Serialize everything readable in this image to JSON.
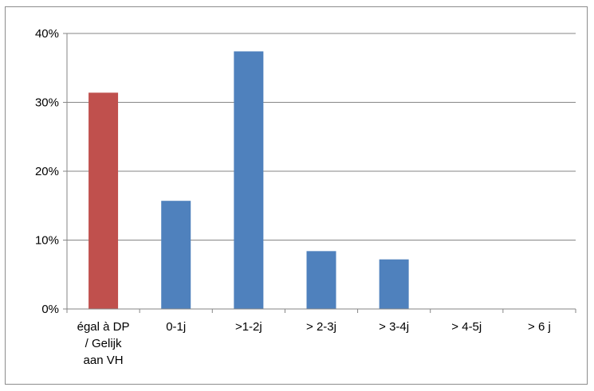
{
  "chart_data": {
    "type": "bar",
    "title": "",
    "xlabel": "",
    "ylabel": "",
    "categories": [
      [
        "égal à DP",
        "/ Gelijk",
        "aan VH"
      ],
      [
        "0-1j"
      ],
      [
        ">1-2j"
      ],
      [
        "> 2-3j"
      ],
      [
        "> 3-4j"
      ],
      [
        "> 4-5j"
      ],
      [
        "> 6 j"
      ]
    ],
    "values": [
      31.4,
      15.7,
      37.4,
      8.4,
      7.2,
      0,
      0
    ],
    "bar_colors": [
      "#C0504D",
      "#4F81BD",
      "#4F81BD",
      "#4F81BD",
      "#4F81BD",
      "#4F81BD",
      "#4F81BD"
    ],
    "ylim": [
      0,
      40
    ],
    "yticks": [
      0,
      10,
      20,
      30,
      40
    ],
    "ytick_labels": [
      "0%",
      "10%",
      "20%",
      "30%",
      "40%"
    ],
    "grid": true,
    "legend": "none",
    "colors": {
      "gridline": "#868686",
      "axis": "#868686",
      "frame": "#8c8c8c"
    }
  }
}
